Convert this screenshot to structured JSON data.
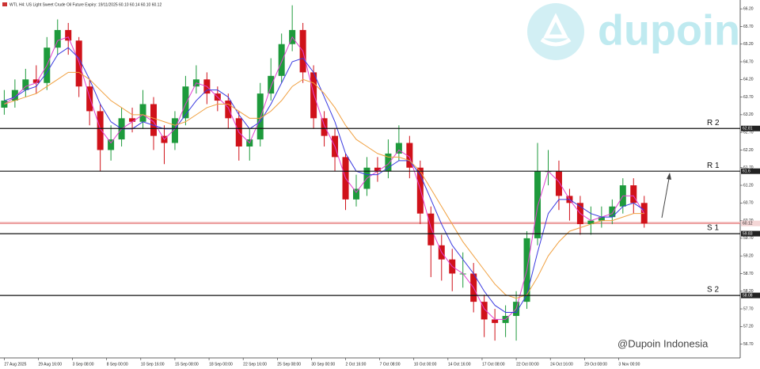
{
  "header": {
    "symbol_info": "WTI, H4: US Light Sweet Crude Oil Future Expiry: 19/11/2025  60.10 60.14 60.10 60.12"
  },
  "watermark": {
    "brand": "dupoin",
    "handle": "@Dupoin Indonesia"
  },
  "chart_data": {
    "type": "candlestick",
    "x": [
      0,
      5,
      10,
      15,
      20,
      25,
      30,
      35,
      40,
      45,
      50,
      55,
      60,
      65,
      70,
      75,
      80,
      85,
      90,
      95,
      100,
      105,
      110,
      115,
      120,
      125,
      130,
      135,
      140,
      145,
      150,
      155,
      160,
      165,
      170,
      175,
      180,
      185,
      190,
      195,
      200,
      205,
      210,
      215,
      220,
      225,
      230,
      235,
      240,
      245,
      250,
      255,
      260,
      265,
      270,
      275,
      280,
      285,
      290,
      295,
      300
    ],
    "open": [
      63.4,
      63.6,
      63.9,
      64.2,
      64.1,
      65.1,
      65.6,
      65.3,
      64.0,
      63.3,
      62.2,
      62.5,
      63.1,
      63.0,
      63.5,
      62.6,
      62.4,
      63.1,
      64.0,
      64.2,
      63.8,
      63.6,
      63.1,
      62.3,
      62.5,
      63.8,
      64.3,
      65.2,
      65.6,
      64.4,
      63.1,
      62.6,
      62.0,
      60.8,
      61.1,
      61.7,
      61.6,
      62.1,
      62.4,
      61.7,
      60.4,
      59.5,
      59.1,
      58.7,
      58.7,
      57.9,
      57.4,
      57.3,
      57.5,
      57.9,
      59.7,
      61.6,
      61.6,
      60.9,
      60.7,
      60.1,
      60.2,
      60.3,
      60.6,
      61.2,
      60.7
    ],
    "high": [
      63.9,
      64.2,
      64.5,
      64.6,
      65.4,
      65.9,
      65.8,
      65.4,
      64.2,
      63.5,
      62.9,
      63.4,
      63.4,
      63.9,
      63.7,
      62.9,
      63.3,
      64.3,
      64.6,
      64.4,
      64.0,
      63.8,
      63.3,
      62.8,
      64.1,
      64.8,
      65.5,
      66.3,
      65.8,
      64.6,
      63.3,
      62.8,
      62.1,
      61.5,
      62.0,
      62.0,
      62.5,
      62.9,
      62.6,
      61.9,
      60.6,
      59.8,
      59.4,
      59.3,
      59.0,
      58.1,
      57.7,
      57.8,
      58.2,
      59.9,
      62.4,
      62.2,
      61.9,
      61.1,
      60.9,
      60.6,
      60.6,
      60.8,
      61.4,
      61.4,
      60.9
    ],
    "low": [
      63.2,
      63.4,
      63.7,
      63.8,
      63.9,
      64.9,
      64.9,
      63.7,
      62.9,
      61.6,
      61.9,
      62.3,
      62.7,
      62.8,
      62.2,
      61.8,
      62.2,
      62.9,
      63.8,
      63.5,
      63.3,
      62.8,
      61.9,
      61.9,
      62.3,
      63.6,
      64.1,
      65.0,
      64.1,
      62.8,
      62.3,
      61.6,
      60.5,
      60.6,
      60.9,
      61.3,
      61.4,
      61.9,
      61.4,
      60.1,
      58.6,
      58.5,
      58.2,
      58.3,
      57.6,
      56.9,
      56.8,
      56.9,
      56.8,
      57.7,
      59.5,
      61.2,
      60.5,
      60.2,
      59.8,
      59.8,
      60.0,
      60.1,
      60.4,
      60.4,
      60.0
    ],
    "close": [
      63.6,
      63.9,
      64.2,
      64.1,
      65.1,
      65.6,
      65.3,
      64.0,
      63.3,
      62.2,
      62.5,
      63.1,
      63.0,
      63.5,
      62.6,
      62.4,
      63.1,
      64.0,
      64.2,
      63.8,
      63.6,
      63.1,
      62.3,
      62.5,
      63.8,
      64.3,
      65.2,
      65.6,
      64.4,
      63.1,
      62.6,
      62.0,
      60.8,
      61.1,
      61.7,
      61.6,
      62.1,
      62.4,
      61.7,
      60.4,
      59.5,
      59.1,
      58.7,
      58.7,
      57.9,
      57.4,
      57.3,
      57.5,
      57.9,
      59.7,
      61.6,
      61.6,
      60.9,
      60.7,
      60.1,
      60.2,
      60.3,
      60.6,
      61.2,
      60.7,
      60.12
    ],
    "up_color": "#1e9a3c",
    "down_color": "#d0121a",
    "series": [
      {
        "color": "#e040d0",
        "values": [
          63.5,
          63.7,
          64.0,
          64.1,
          64.6,
          65.3,
          65.4,
          64.7,
          63.7,
          62.8,
          62.4,
          62.8,
          63.0,
          63.2,
          63.0,
          62.5,
          62.8,
          63.5,
          64.1,
          64.0,
          63.7,
          63.4,
          62.7,
          62.4,
          63.1,
          64.0,
          64.7,
          65.4,
          65.0,
          63.8,
          62.9,
          62.3,
          61.4,
          61.0,
          61.4,
          61.6,
          61.8,
          62.2,
          62.0,
          61.1,
          60.0,
          59.3,
          58.9,
          58.7,
          58.3,
          57.7,
          57.4,
          57.4,
          57.7,
          58.8,
          60.6,
          61.6,
          61.3,
          60.8,
          60.4,
          60.2,
          60.3,
          60.4,
          60.9,
          60.9,
          60.4
        ]
      },
      {
        "color": "#3a3ae0",
        "values": [
          63.6,
          63.7,
          63.9,
          64.0,
          64.4,
          64.9,
          65.1,
          64.8,
          64.2,
          63.5,
          63.0,
          62.8,
          62.8,
          63.0,
          62.9,
          62.8,
          62.8,
          63.2,
          63.6,
          63.9,
          63.9,
          63.7,
          63.2,
          62.8,
          63.0,
          63.5,
          64.1,
          64.7,
          64.8,
          64.4,
          63.7,
          63.0,
          62.1,
          61.6,
          61.5,
          61.5,
          61.7,
          61.9,
          61.9,
          61.5,
          60.8,
          60.1,
          59.5,
          59.1,
          58.7,
          58.2,
          57.8,
          57.6,
          57.6,
          58.1,
          59.3,
          60.4,
          60.8,
          60.8,
          60.6,
          60.4,
          60.3,
          60.3,
          60.6,
          60.7,
          60.5
        ]
      },
      {
        "color": "#f0a040",
        "values": [
          63.5,
          63.6,
          63.7,
          63.8,
          64.0,
          64.2,
          64.4,
          64.4,
          64.2,
          63.9,
          63.6,
          63.4,
          63.2,
          63.2,
          63.1,
          63.0,
          62.9,
          63.0,
          63.2,
          63.4,
          63.5,
          63.5,
          63.3,
          63.1,
          63.1,
          63.3,
          63.6,
          64.0,
          64.2,
          64.1,
          63.8,
          63.4,
          62.9,
          62.5,
          62.3,
          62.1,
          62.0,
          62.0,
          61.9,
          61.6,
          61.1,
          60.6,
          60.1,
          59.6,
          59.2,
          58.8,
          58.4,
          58.1,
          58.0,
          58.1,
          58.6,
          59.2,
          59.6,
          59.9,
          60.0,
          60.1,
          60.2,
          60.2,
          60.3,
          60.4,
          60.4
        ]
      }
    ],
    "levels": [
      {
        "label": "R 2",
        "value": 62.81
      },
      {
        "label": "R 1",
        "value": 61.6
      },
      {
        "label": "S 1",
        "value": 59.83
      },
      {
        "label": "S 2",
        "value": 58.08
      }
    ],
    "last_price": 60.12,
    "xlim": [
      -2,
      345
    ],
    "xticks": [
      {
        "value": 0,
        "label": "27 Aug 2025"
      },
      {
        "value": 16,
        "label": "29 Aug 16:00"
      },
      {
        "value": 32,
        "label": "3 Sep 08:00"
      },
      {
        "value": 48,
        "label": "8 Sep 00:00"
      },
      {
        "value": 64,
        "label": "10 Sep 16:00"
      },
      {
        "value": 80,
        "label": "15 Sep 08:00"
      },
      {
        "value": 96,
        "label": "18 Sep 00:00"
      },
      {
        "value": 112,
        "label": "22 Sep 16:00"
      },
      {
        "value": 128,
        "label": "25 Sep 08:00"
      },
      {
        "value": 144,
        "label": "30 Sep 00:00"
      },
      {
        "value": 160,
        "label": "2 Oct 16:00"
      },
      {
        "value": 176,
        "label": "7 Oct 08:00"
      },
      {
        "value": 192,
        "label": "10 Oct 00:00"
      },
      {
        "value": 208,
        "label": "14 Oct 16:00"
      },
      {
        "value": 224,
        "label": "17 Oct 08:00"
      },
      {
        "value": 240,
        "label": "22 Oct 00:00"
      },
      {
        "value": 256,
        "label": "24 Oct 16:00"
      },
      {
        "value": 272,
        "label": "29 Oct 08:00"
      },
      {
        "value": 288,
        "label": "3 Nov 00:00"
      }
    ],
    "ylim": [
      56.31,
      66.45
    ],
    "yticks": [
      {
        "value": 66.2,
        "label": "66.20"
      },
      {
        "value": 65.7,
        "label": "65.70"
      },
      {
        "value": 65.2,
        "label": "65.20"
      },
      {
        "value": 64.7,
        "label": "64.70"
      },
      {
        "value": 64.2,
        "label": "64.20"
      },
      {
        "value": 63.7,
        "label": "63.70"
      },
      {
        "value": 63.2,
        "label": "63.20"
      },
      {
        "value": 62.7,
        "label": "62.70"
      },
      {
        "value": 62.2,
        "label": "62.20"
      },
      {
        "value": 61.7,
        "label": "61.70"
      },
      {
        "value": 61.2,
        "label": "61.20"
      },
      {
        "value": 60.7,
        "label": "60.70"
      },
      {
        "value": 60.2,
        "label": "60.20"
      },
      {
        "value": 59.7,
        "label": "59.70"
      },
      {
        "value": 59.2,
        "label": "59.20"
      },
      {
        "value": 58.7,
        "label": "58.70"
      },
      {
        "value": 58.2,
        "label": "58.20"
      },
      {
        "value": 57.7,
        "label": "57.70"
      },
      {
        "value": 57.2,
        "label": "57.20"
      },
      {
        "value": 56.7,
        "label": "56.70"
      }
    ]
  }
}
